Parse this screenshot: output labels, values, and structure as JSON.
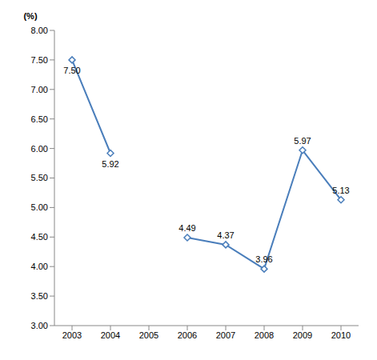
{
  "chart_data": {
    "type": "line",
    "y_label": "(%)",
    "categories": [
      "2003",
      "2004",
      "2005",
      "2006",
      "2007",
      "2008",
      "2009",
      "2010"
    ],
    "values": [
      7.5,
      5.92,
      null,
      4.49,
      4.37,
      3.96,
      5.97,
      5.13
    ],
    "value_labels": [
      "7.50",
      "5.92",
      null,
      "4.49",
      "4.37",
      "3.96",
      "5.97",
      "5.13"
    ],
    "color": "#4a7ebb",
    "marker": "diamond",
    "line_style": "solid",
    "ylim": [
      3,
      8
    ],
    "yticks": [
      {
        "value": 3,
        "label": "3.00"
      },
      {
        "value": 3.5,
        "label": "3.50"
      },
      {
        "value": 4,
        "label": "4.00"
      },
      {
        "value": 4.5,
        "label": "4.50"
      },
      {
        "value": 5,
        "label": "5.00"
      },
      {
        "value": 5.5,
        "label": "5.50"
      },
      {
        "value": 6,
        "label": "6.00"
      },
      {
        "value": 6.5,
        "label": "6.50"
      },
      {
        "value": 7,
        "label": "7.00"
      },
      {
        "value": 7.5,
        "label": "7.50"
      },
      {
        "value": 8,
        "label": "8.00"
      }
    ],
    "grid": false,
    "data_labels": true
  }
}
